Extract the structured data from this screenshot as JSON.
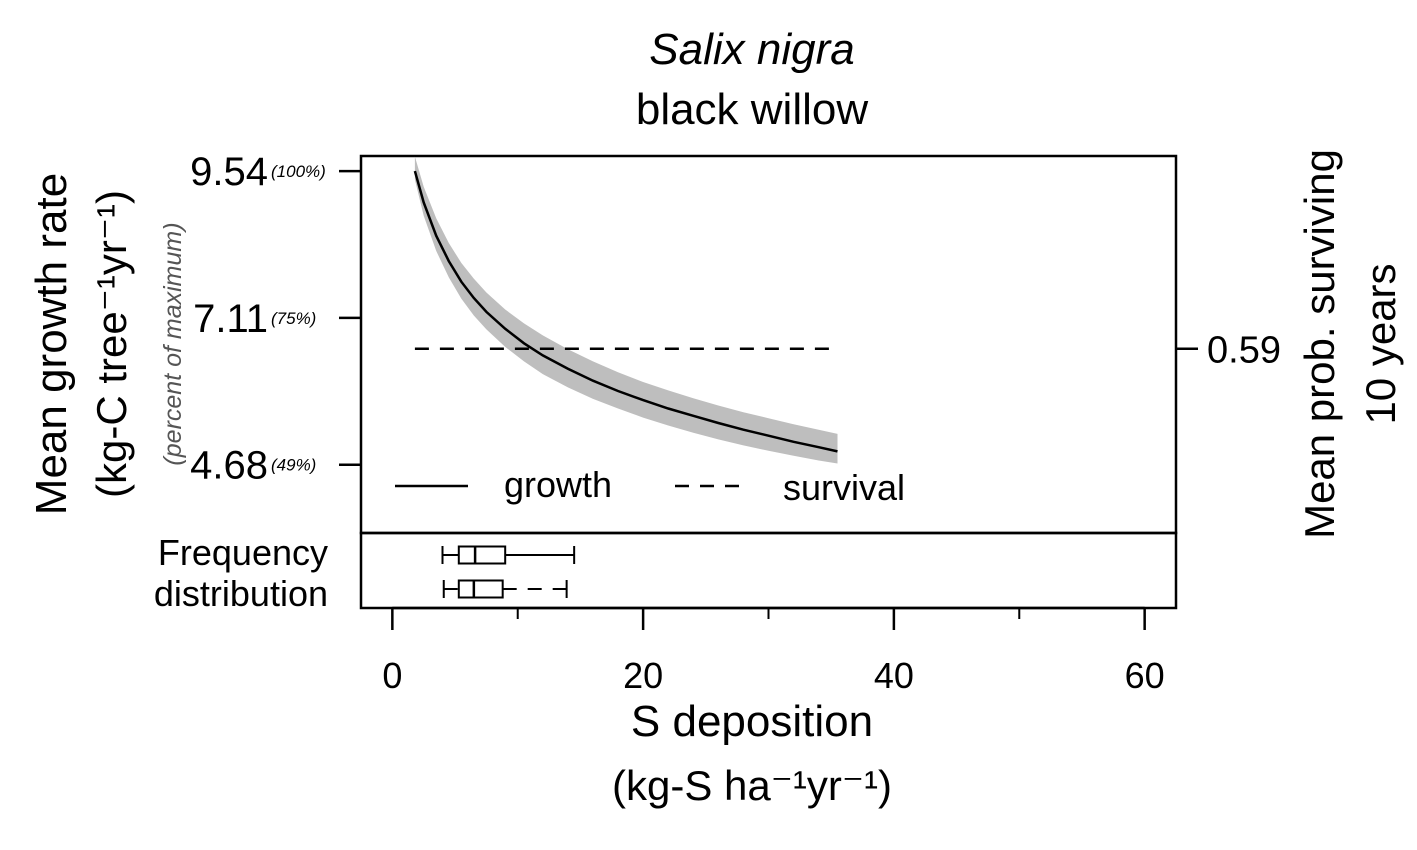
{
  "chart_data": {
    "type": "line",
    "title": "Salix nigra",
    "subtitle": "black willow",
    "xlabel": "S deposition",
    "xunit": "(kg-S ha⁻¹yr⁻¹)",
    "ylabel": "Mean growth rate",
    "yunit": "(kg-C tree⁻¹yr⁻¹)",
    "ylabel_sub": "(percent of maximum)",
    "y2label_line1": "Mean prob. surviving",
    "y2label_line2": "10 years",
    "xlim": [
      -2.5,
      62.5
    ],
    "ylim": [
      3.55,
      9.79
    ],
    "x_ticks": [
      0,
      20,
      40,
      60
    ],
    "x_tick_labels": [
      "0",
      "20",
      "40",
      "60"
    ],
    "x_minor_ticks": [
      10,
      30,
      50
    ],
    "y_ticks": [
      {
        "value": 9.54,
        "label": "9.54",
        "pct": "(100%)"
      },
      {
        "value": 7.11,
        "label": "7.11",
        "pct": "(75%)"
      },
      {
        "value": 4.68,
        "label": "4.68",
        "pct": "(49%)"
      }
    ],
    "y2_tick": {
      "value": 6.6,
      "label": "0.59"
    },
    "series": [
      {
        "name": "growth",
        "style": "solid",
        "color": "#000000",
        "x": [
          1.8,
          2.5,
          3.5,
          4.5,
          5.5,
          6.5,
          7.5,
          9,
          10.5,
          12,
          14,
          16,
          18,
          20,
          22,
          24,
          26,
          28,
          30,
          32,
          34,
          35.5
        ],
        "y": [
          9.54,
          9.02,
          8.47,
          8.05,
          7.71,
          7.44,
          7.21,
          6.93,
          6.69,
          6.49,
          6.27,
          6.07,
          5.9,
          5.75,
          5.61,
          5.49,
          5.37,
          5.26,
          5.16,
          5.06,
          4.97,
          4.9
        ],
        "band_upper": [
          9.78,
          9.28,
          8.76,
          8.35,
          8.02,
          7.76,
          7.53,
          7.25,
          7.02,
          6.82,
          6.59,
          6.39,
          6.21,
          6.05,
          5.91,
          5.78,
          5.66,
          5.55,
          5.45,
          5.35,
          5.26,
          5.19
        ],
        "band_lower": [
          9.4,
          8.8,
          8.22,
          7.78,
          7.43,
          7.15,
          6.92,
          6.63,
          6.39,
          6.18,
          5.96,
          5.77,
          5.61,
          5.46,
          5.33,
          5.21,
          5.1,
          5.0,
          4.91,
          4.83,
          4.75,
          4.7
        ],
        "band_color": "#bebebe"
      },
      {
        "name": "survival",
        "style": "dashed",
        "color": "#000000",
        "x": [
          1.8,
          35.5
        ],
        "y": [
          6.6,
          6.6
        ]
      }
    ],
    "legend": {
      "position": "bottom-left",
      "entries": [
        "growth",
        "survival"
      ]
    },
    "frequency_distribution": {
      "label_line1": "Frequency",
      "label_line2": "distribution",
      "boxes": [
        {
          "whisker_style": "solid",
          "min": 4,
          "q1": 5.3,
          "median": 6.6,
          "q3": 9,
          "max": 14.5
        },
        {
          "whisker_style": "dashed",
          "min": 4.1,
          "q1": 5.3,
          "median": 6.5,
          "q3": 8.8,
          "max": 13.9
        }
      ]
    }
  }
}
